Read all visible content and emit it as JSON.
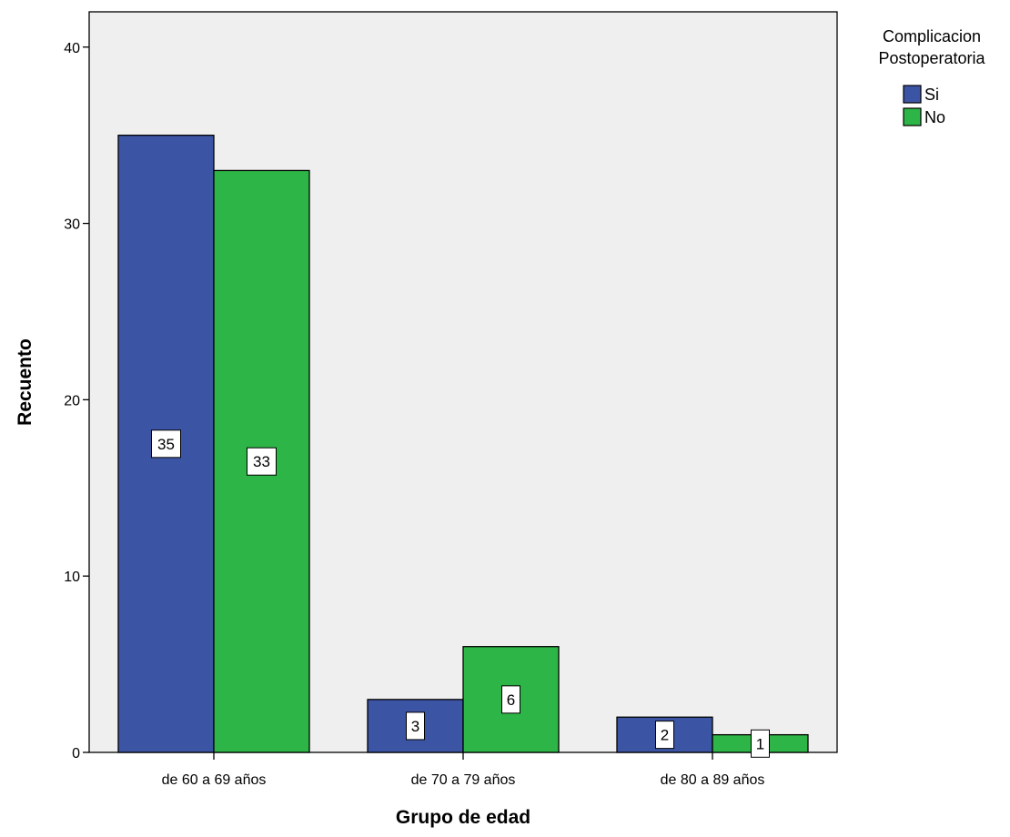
{
  "chart_data": {
    "type": "bar",
    "categories": [
      "de 60 a 69 años",
      "de 70 a 79 años",
      "de 80 a 89 años"
    ],
    "series": [
      {
        "name": "Si",
        "values": [
          35,
          3,
          2
        ],
        "color": "#3C54A4"
      },
      {
        "name": "No",
        "values": [
          33,
          6,
          1
        ],
        "color": "#2EB547"
      }
    ],
    "xlabel": "Grupo de edad",
    "ylabel": "Recuento",
    "ylim": [
      0,
      42
    ],
    "yticks": [
      0,
      10,
      20,
      30,
      40
    ],
    "legend": {
      "title": "Complicacion Postoperatoria",
      "position": "top-right"
    },
    "plot_background": "#EFEFEF"
  }
}
